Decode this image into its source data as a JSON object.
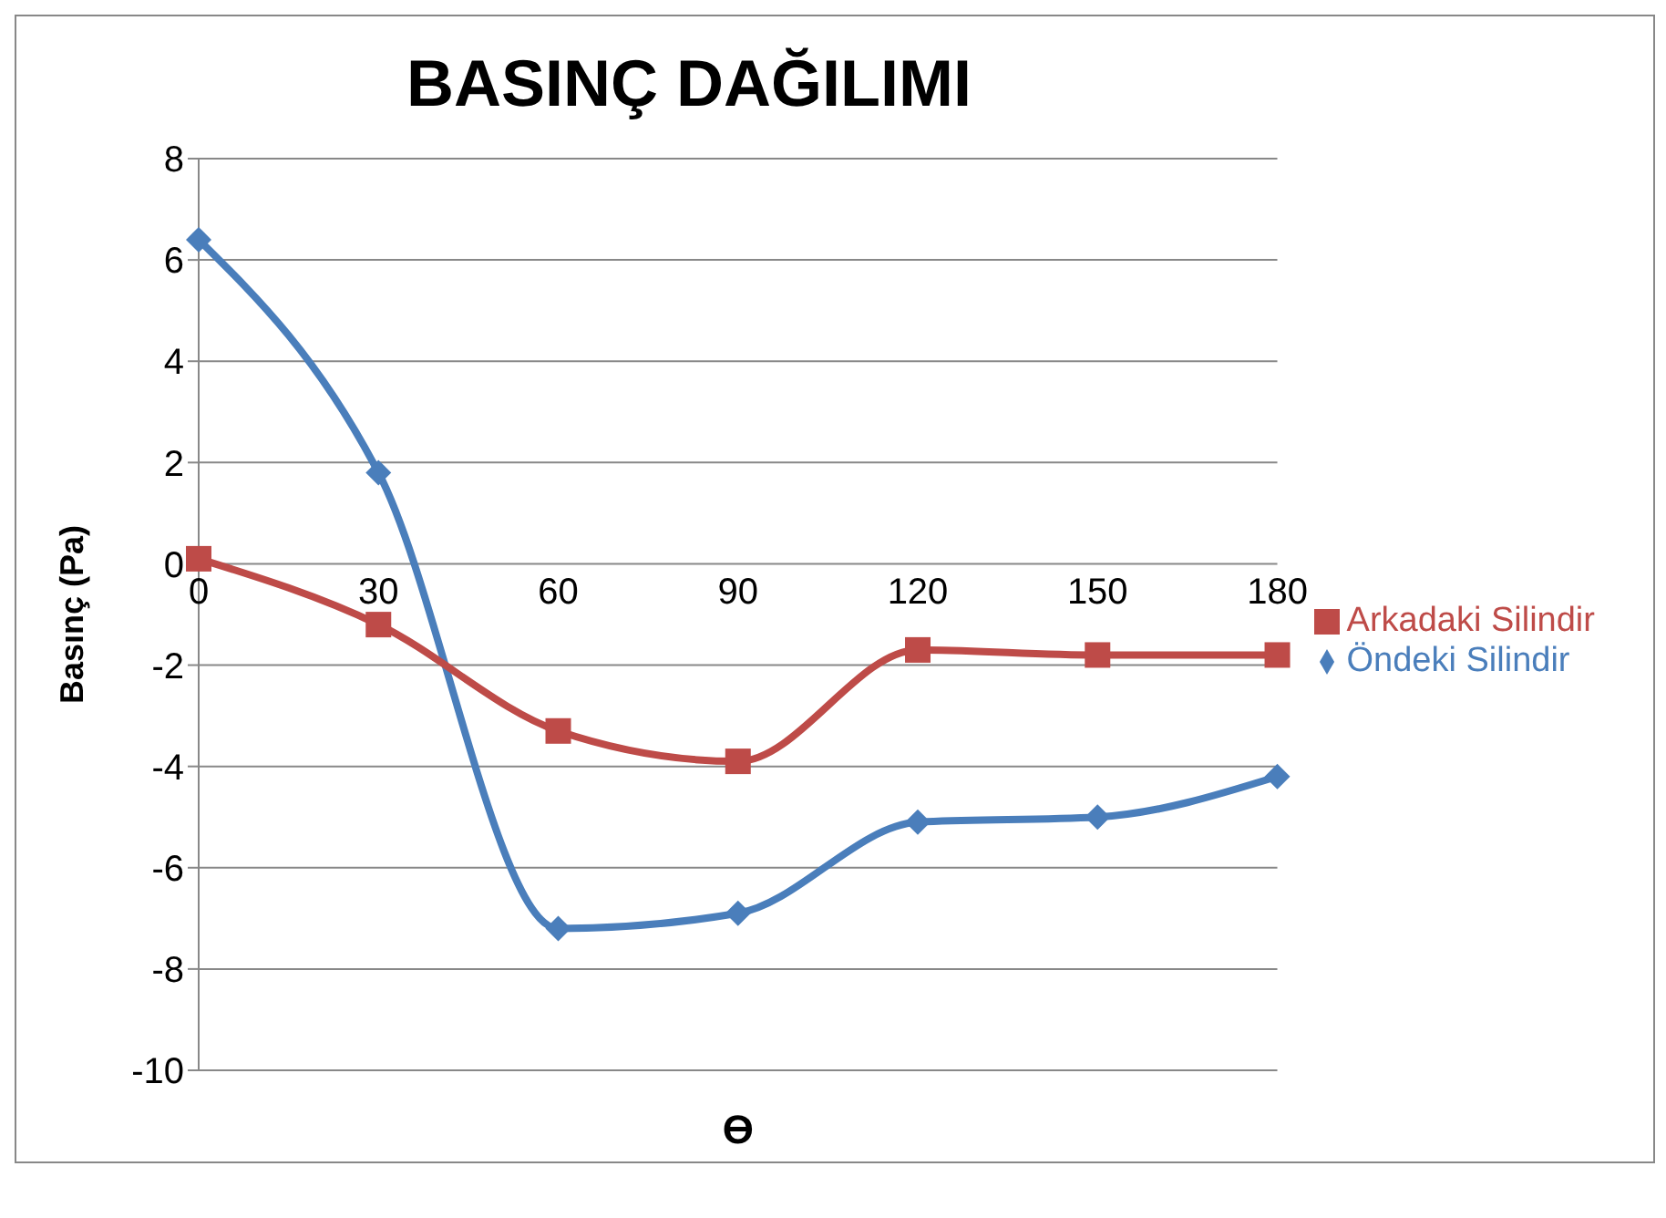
{
  "chart_data": {
    "type": "line",
    "title": "BASINÇ DAĞILIMI",
    "xlabel": "ϴ",
    "ylabel": "Basınç (Pa)",
    "categories": [
      "0",
      "30",
      "60",
      "90",
      "120",
      "150",
      "180"
    ],
    "series": [
      {
        "name": "Öndeki Silindir",
        "color": "#4a7ebb",
        "marker": "diamond",
        "values": [
          6.4,
          1.8,
          -7.2,
          -6.9,
          -5.1,
          -5.0,
          -4.2
        ]
      },
      {
        "name": "Arkadaki Silindir",
        "color": "#be4b48",
        "marker": "square",
        "values": [
          0.1,
          -1.2,
          -3.3,
          -3.9,
          -1.7,
          -1.8,
          -1.8
        ]
      }
    ],
    "ylim": [
      -10,
      8
    ],
    "yticks": [
      -10,
      -8,
      -6,
      -4,
      -2,
      0,
      2,
      4,
      6,
      8
    ],
    "grid": "y",
    "legend": "right"
  }
}
